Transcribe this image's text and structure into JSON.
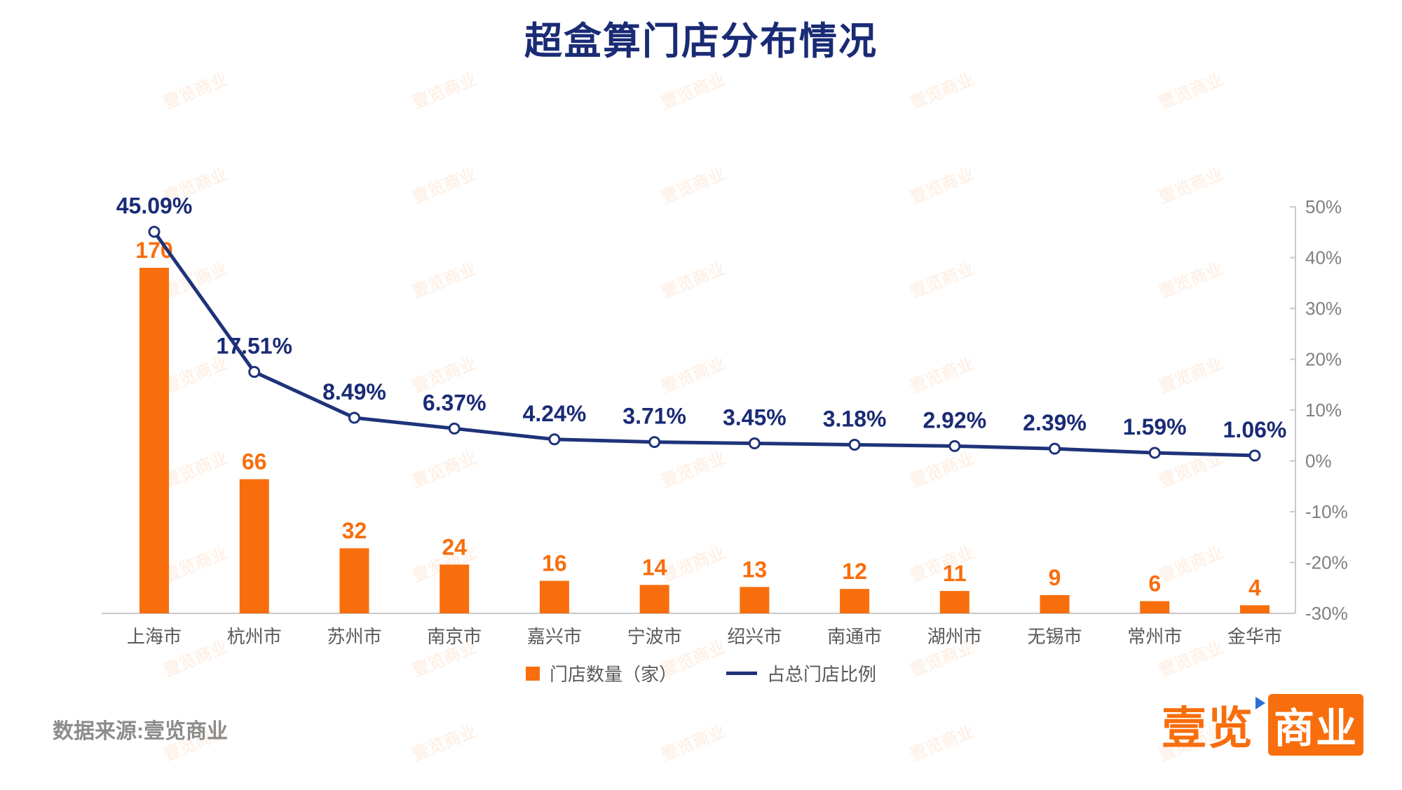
{
  "title": "超盒算门店分布情况",
  "source": "数据来源:壹览商业",
  "watermark": "壹览商业",
  "logo": {
    "part1": "壹览",
    "part2": "商业"
  },
  "legend": [
    {
      "label": "门店数量（家）",
      "type": "bar"
    },
    {
      "label": "占总门店比例",
      "type": "line"
    }
  ],
  "colors": {
    "bar": "#F86E0D",
    "line": "#1E3379",
    "title": "#1A2B75",
    "bar_label": "#F86E0D",
    "line_label": "#1A2B75",
    "axis": "#C9C9C9",
    "tick_text": "#7F7F7F",
    "category_text": "#595959"
  },
  "chart_data": {
    "type": "bar+line",
    "title": "超盒算门店分布情况",
    "categories": [
      "上海市",
      "杭州市",
      "苏州市",
      "南京市",
      "嘉兴市",
      "宁波市",
      "绍兴市",
      "南通市",
      "湖州市",
      "无锡市",
      "常州市",
      "金华市"
    ],
    "series": [
      {
        "name": "门店数量（家）",
        "type": "bar",
        "values": [
          170,
          66,
          32,
          24,
          16,
          14,
          13,
          12,
          11,
          9,
          6,
          4
        ]
      },
      {
        "name": "占总门店比例",
        "type": "line",
        "unit": "%",
        "values": [
          45.09,
          17.51,
          8.49,
          6.37,
          4.24,
          3.71,
          3.45,
          3.18,
          2.92,
          2.39,
          1.59,
          1.06
        ]
      }
    ],
    "bar_value_labels": [
      "170",
      "66",
      "32",
      "24",
      "16",
      "14",
      "13",
      "12",
      "11",
      "9",
      "6",
      "4"
    ],
    "line_value_labels": [
      "45.09%",
      "17.51%",
      "8.49%",
      "6.37%",
      "4.24%",
      "3.71%",
      "3.45%",
      "3.18%",
      "2.92%",
      "2.39%",
      "1.59%",
      "1.06%"
    ],
    "y2_axis": {
      "position": "right",
      "min": -30,
      "max": 50,
      "step": 10,
      "labels": [
        "50%",
        "40%",
        "30%",
        "20%",
        "10%",
        "0%",
        "-10%",
        "-20%",
        "-30%"
      ]
    },
    "grid": false,
    "legend_position": "bottom"
  }
}
